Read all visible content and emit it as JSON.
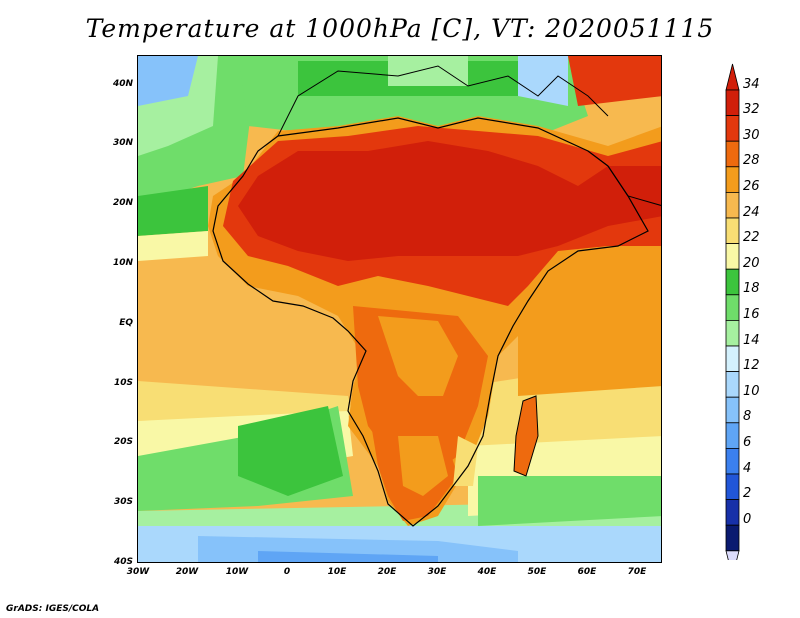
{
  "title": "Temperature at 1000hPa [C], VT: 2020051115",
  "credit": "GrADS: IGES/COLA",
  "map": {
    "variable": "Temperature at 1000hPa",
    "units": "C",
    "valid_time": "2020051115",
    "lon_range": [
      "30W",
      "75E"
    ],
    "lat_range": [
      "40S",
      "45N"
    ],
    "lat_ticks": [
      "40N",
      "30N",
      "20N",
      "10N",
      "EQ",
      "10S",
      "20S",
      "30S",
      "40S"
    ],
    "lon_ticks": [
      "30W",
      "20W",
      "10W",
      "0",
      "10E",
      "20E",
      "30E",
      "40E",
      "50E",
      "60E",
      "70E"
    ]
  },
  "colorbar": {
    "levels": [
      "0",
      "2",
      "4",
      "6",
      "8",
      "10",
      "12",
      "14",
      "16",
      "18",
      "20",
      "22",
      "24",
      "26",
      "28",
      "30",
      "32",
      "34"
    ],
    "colors": [
      "#0a1a70",
      "#1730a8",
      "#2156d8",
      "#3b80ee",
      "#5fa5f5",
      "#86c2fa",
      "#aad8fc",
      "#d4f1fd",
      "#a6f0a0",
      "#6fdd6a",
      "#3cc43d",
      "#f9f8a6",
      "#f8de74",
      "#f7b94f",
      "#f39c1c",
      "#ee6a0e",
      "#e3380d",
      "#d11f0a",
      "#dcdcfc"
    ]
  }
}
